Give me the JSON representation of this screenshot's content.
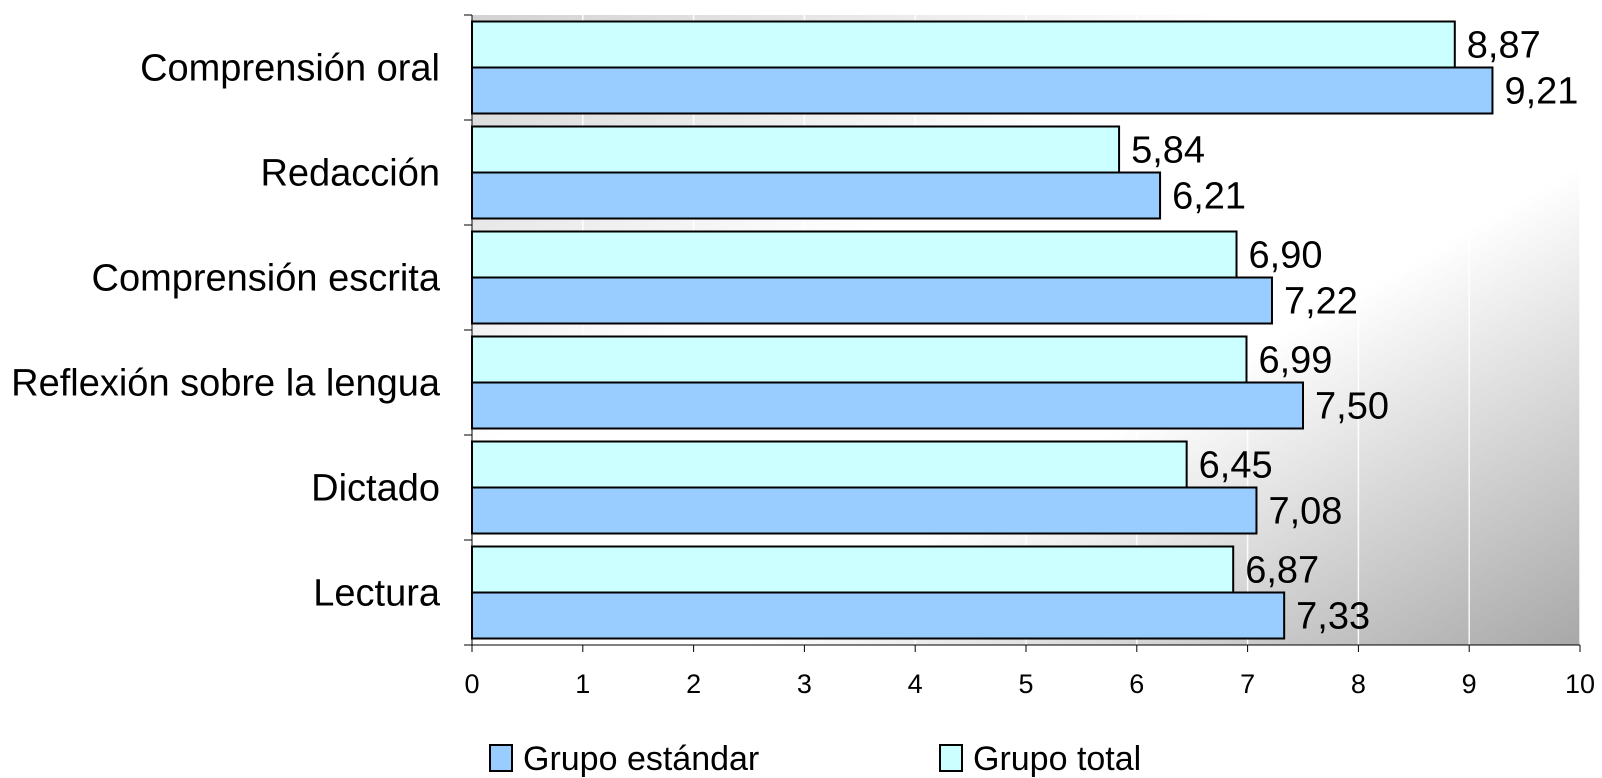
{
  "chart_data": {
    "type": "bar",
    "orientation": "horizontal",
    "categories": [
      "Comprensión oral",
      "Redacción",
      "Comprensión escrita",
      "Reflexión sobre la lengua",
      "Dictado",
      "Lectura"
    ],
    "series": [
      {
        "name": "Grupo total",
        "color": "#CCFFFF",
        "values": [
          8.87,
          5.84,
          6.9,
          6.99,
          6.45,
          6.87
        ],
        "labels": [
          "8,87",
          "5,84",
          "6,90",
          "6,99",
          "6,45",
          "6,87"
        ]
      },
      {
        "name": "Grupo estándar",
        "color": "#99CCFF",
        "values": [
          9.21,
          6.21,
          7.22,
          7.5,
          7.08,
          7.33
        ],
        "labels": [
          "9,21",
          "6,21",
          "7,22",
          "7,50",
          "7,08",
          "7,33"
        ]
      }
    ],
    "xticks": [
      "0",
      "1",
      "2",
      "3",
      "4",
      "5",
      "6",
      "7",
      "8",
      "9",
      "10"
    ],
    "xlim": [
      0,
      10
    ],
    "grid": true,
    "legend": {
      "position": "bottom",
      "entries": [
        {
          "label": "Grupo estándar",
          "color": "#99CCFF"
        },
        {
          "label": "Grupo total",
          "color": "#CCFFFF"
        }
      ]
    }
  }
}
